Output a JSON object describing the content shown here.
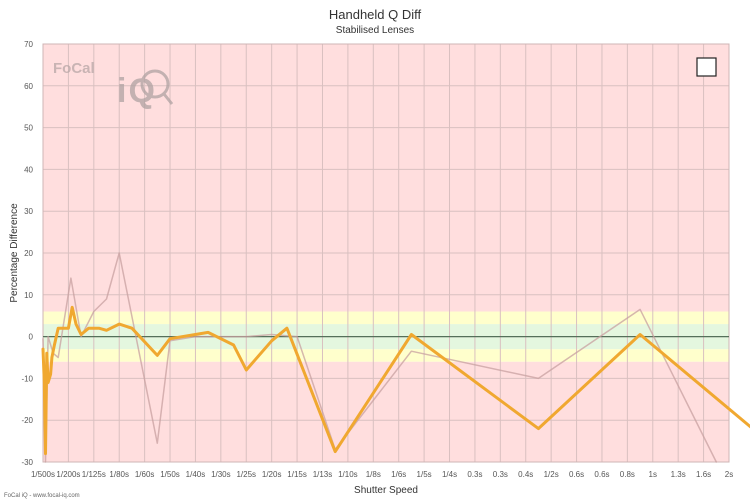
{
  "logo": {
    "text_left": "FoCal",
    "text_right": "iQ"
  },
  "credit": "FoCal iQ - www.focal-iq.com",
  "legend_toggle": {
    "checked": false
  },
  "chart_data": {
    "type": "line",
    "title": "Handheld Q Diff",
    "subtitle": "Stabilised Lenses",
    "xlabel": "Shutter Speed",
    "ylabel": "Percentage Difference",
    "ylim": [
      -30,
      70
    ],
    "yticks": [
      -30,
      -20,
      -10,
      0,
      10,
      20,
      30,
      40,
      50,
      60,
      70
    ],
    "grid": "on",
    "legend": "none",
    "categories": [
      "1/500s",
      "1/200s",
      "1/125s",
      "1/80s",
      "1/60s",
      "1/50s",
      "1/40s",
      "1/30s",
      "1/25s",
      "1/20s",
      "1/15s",
      "1/13s",
      "1/10s",
      "1/8s",
      "1/6s",
      "1/5s",
      "1/4s",
      "0.3s",
      "0.3s",
      "0.4s",
      "1/2s",
      "0.6s",
      "0.6s",
      "0.8s",
      "1s",
      "1.3s",
      "1.6s",
      "2s"
    ],
    "bands": [
      {
        "from": -30,
        "to": -6,
        "color": "#ffdede"
      },
      {
        "from": -6,
        "to": -3,
        "color": "#ffffcc"
      },
      {
        "from": -3,
        "to": 3,
        "color": "#e4f7df"
      },
      {
        "from": 3,
        "to": 6,
        "color": "#ffffcc"
      },
      {
        "from": 6,
        "to": 70,
        "color": "#ffdede"
      }
    ],
    "series": [
      {
        "color": "#f0a830",
        "width": 3,
        "points": [
          [
            0,
            -3
          ],
          [
            0.05,
            -11
          ],
          [
            0.1,
            -28
          ],
          [
            0.15,
            -4
          ],
          [
            0.2,
            -11
          ],
          [
            0.3,
            -9
          ],
          [
            0.35,
            -5
          ],
          [
            0.45,
            -2
          ],
          [
            0.6,
            2
          ],
          [
            1,
            2
          ],
          [
            1.15,
            7
          ],
          [
            1.3,
            3
          ],
          [
            1.5,
            0.5
          ],
          [
            1.8,
            2
          ],
          [
            2.2,
            2
          ],
          [
            2.5,
            1.5
          ],
          [
            3,
            3
          ],
          [
            3.5,
            2
          ],
          [
            4.5,
            -4.5
          ],
          [
            5,
            -0.5
          ],
          [
            6,
            0.5
          ],
          [
            6.5,
            1
          ],
          [
            7.5,
            -2
          ],
          [
            8,
            -8
          ],
          [
            9,
            -1
          ],
          [
            9.6,
            2
          ],
          [
            11.5,
            -27.5
          ],
          [
            14.5,
            0.5
          ],
          [
            19.5,
            -22
          ],
          [
            23.5,
            0.5
          ],
          [
            29.5,
            -30
          ]
        ]
      },
      {
        "color": "#c8a0a0",
        "width": 1.5,
        "points": [
          [
            0,
            -0.5
          ],
          [
            0.1,
            -30
          ],
          [
            0.2,
            0
          ],
          [
            0.4,
            -4
          ],
          [
            0.6,
            -5
          ],
          [
            1.1,
            14
          ],
          [
            1.5,
            0
          ],
          [
            2,
            6
          ],
          [
            2.5,
            9
          ],
          [
            3,
            20
          ],
          [
            4.5,
            -25.5
          ],
          [
            5,
            -1
          ],
          [
            6,
            0
          ],
          [
            8,
            0
          ],
          [
            9,
            0.5
          ],
          [
            10,
            0
          ],
          [
            11.5,
            -27
          ],
          [
            14.5,
            -3.5
          ],
          [
            19.5,
            -10
          ],
          [
            23.5,
            6.5
          ],
          [
            26.5,
            -30
          ]
        ]
      }
    ]
  }
}
